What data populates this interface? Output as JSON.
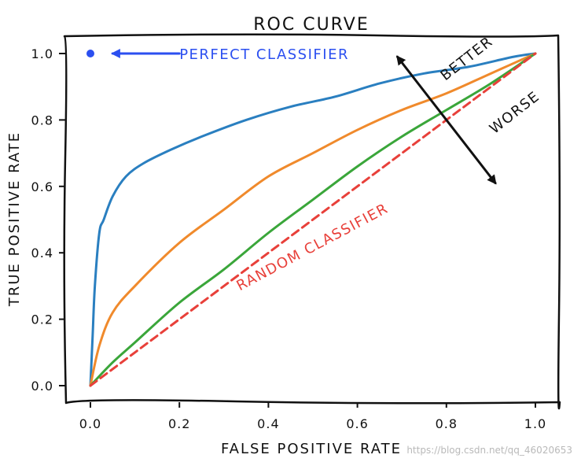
{
  "chart_data": {
    "type": "line",
    "title": "ROC CURVE",
    "xlabel": "FALSE POSITIVE RATE",
    "ylabel": "TRUE POSITIVE RATE",
    "xlim": [
      -0.05,
      1.05
    ],
    "ylim": [
      -0.05,
      1.05
    ],
    "grid": false,
    "xticks": [
      0.0,
      0.2,
      0.4,
      0.6,
      0.8,
      1.0
    ],
    "yticks": [
      0.0,
      0.2,
      0.4,
      0.6,
      0.8,
      1.0
    ],
    "xtick_labels": [
      "0.0",
      "0.2",
      "0.4",
      "0.6",
      "0.8",
      "1.0"
    ],
    "ytick_labels": [
      "0.0",
      "0.2",
      "0.4",
      "0.6",
      "0.8",
      "1.0"
    ],
    "series": [
      {
        "name": "good-classifier",
        "color": "#2a7fc0",
        "x": [
          0,
          0.005,
          0.01,
          0.02,
          0.03,
          0.05,
          0.08,
          0.12,
          0.18,
          0.25,
          0.35,
          0.45,
          0.55,
          0.65,
          0.75,
          0.85,
          0.95,
          1.0
        ],
        "y": [
          0,
          0.15,
          0.3,
          0.46,
          0.5,
          0.57,
          0.63,
          0.67,
          0.71,
          0.75,
          0.8,
          0.84,
          0.87,
          0.91,
          0.94,
          0.96,
          0.99,
          1.0
        ]
      },
      {
        "name": "medium-classifier",
        "color": "#f08a2c",
        "x": [
          0,
          0.02,
          0.05,
          0.1,
          0.2,
          0.3,
          0.4,
          0.5,
          0.6,
          0.7,
          0.8,
          0.9,
          1.0
        ],
        "y": [
          0,
          0.12,
          0.22,
          0.3,
          0.43,
          0.53,
          0.63,
          0.7,
          0.77,
          0.83,
          0.88,
          0.94,
          1.0
        ]
      },
      {
        "name": "weak-classifier",
        "color": "#3aa63a",
        "x": [
          0,
          0.05,
          0.1,
          0.2,
          0.3,
          0.4,
          0.5,
          0.6,
          0.7,
          0.8,
          0.9,
          1.0
        ],
        "y": [
          0,
          0.07,
          0.13,
          0.25,
          0.35,
          0.46,
          0.56,
          0.66,
          0.75,
          0.83,
          0.91,
          1.0
        ]
      },
      {
        "name": "random-classifier",
        "color": "#e8403a",
        "dashed": true,
        "x": [
          0,
          1
        ],
        "y": [
          0,
          1
        ]
      }
    ],
    "points": [
      {
        "name": "perfect-classifier-point",
        "x": 0.0,
        "y": 1.0,
        "color": "#2b4ff0"
      }
    ],
    "annotations": [
      {
        "name": "perfect-classifier-label",
        "text": "PERFECT CLASSIFIER",
        "x": 0.2,
        "y": 1.0,
        "color": "#2b4ff0"
      },
      {
        "name": "random-classifier-label",
        "text": "RANDOM CLASSIFIER",
        "x": 0.33,
        "y": 0.3,
        "rotation": -28,
        "color": "#e8403a"
      },
      {
        "name": "better-label",
        "text": "BETTER",
        "x": 0.79,
        "y": 0.93,
        "rotation": -38,
        "color": "#111111"
      },
      {
        "name": "worse-label",
        "text": "WORSE",
        "x": 0.9,
        "y": 0.77,
        "rotation": -38,
        "color": "#111111"
      }
    ],
    "arrows": [
      {
        "name": "perfect-classifier-arrow",
        "from": [
          0.2,
          1.0
        ],
        "to": [
          0.05,
          1.0
        ],
        "color": "#2b4ff0"
      },
      {
        "name": "better-worse-arrow",
        "from": [
          0.69,
          0.99
        ],
        "to": [
          0.91,
          0.61
        ],
        "double": true,
        "color": "#111111"
      }
    ]
  },
  "watermark": "https://blog.csdn.net/qq_46020653"
}
